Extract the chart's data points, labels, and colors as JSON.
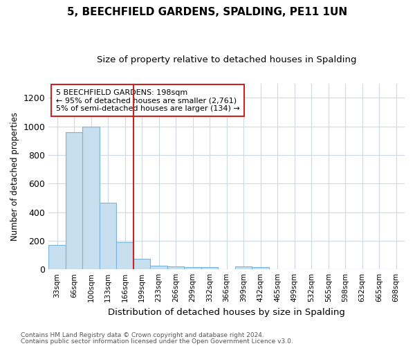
{
  "title": "5, BEECHFIELD GARDENS, SPALDING, PE11 1UN",
  "subtitle": "Size of property relative to detached houses in Spalding",
  "xlabel": "Distribution of detached houses by size in Spalding",
  "ylabel": "Number of detached properties",
  "footnote1": "Contains HM Land Registry data © Crown copyright and database right 2024.",
  "footnote2": "Contains public sector information licensed under the Open Government Licence v3.0.",
  "annotation_line1": "5 BEECHFIELD GARDENS: 198sqm",
  "annotation_line2": "← 95% of detached houses are smaller (2,761)",
  "annotation_line3": "5% of semi-detached houses are larger (134) →",
  "bar_labels": [
    "33sqm",
    "66sqm",
    "100sqm",
    "133sqm",
    "166sqm",
    "199sqm",
    "233sqm",
    "266sqm",
    "299sqm",
    "332sqm",
    "366sqm",
    "399sqm",
    "432sqm",
    "465sqm",
    "499sqm",
    "532sqm",
    "565sqm",
    "598sqm",
    "632sqm",
    "665sqm",
    "698sqm"
  ],
  "bar_values": [
    170,
    960,
    1000,
    465,
    190,
    75,
    25,
    20,
    15,
    15,
    0,
    18,
    15,
    0,
    0,
    0,
    0,
    0,
    0,
    0,
    0
  ],
  "bar_color": "#c8dff0",
  "bar_edge_color": "#7ab5d8",
  "vline_color": "#cc2222",
  "vline_x_index": 5,
  "ylim": [
    0,
    1300
  ],
  "yticks": [
    0,
    200,
    400,
    600,
    800,
    1000,
    1200
  ],
  "annotation_box_color": "#FFFFFF",
  "annotation_box_edge": "#cc2222",
  "background_color": "#FFFFFF",
  "grid_color": "#d0d8e8"
}
